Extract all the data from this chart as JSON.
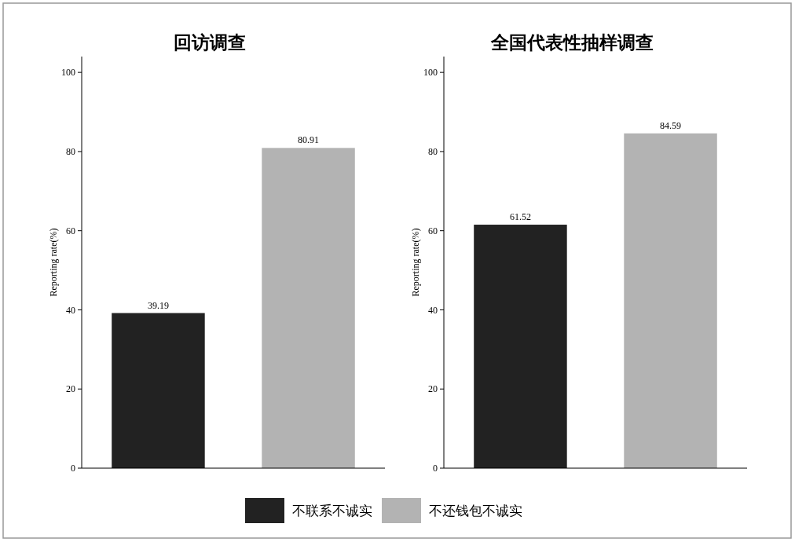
{
  "chart_data": [
    {
      "type": "bar",
      "title": "回访调查",
      "ylabel": "Reporting rate(%)",
      "categories": [
        null,
        null
      ],
      "series": [
        {
          "name": "不联系不诚实",
          "color": "#222222",
          "values": [
            39.19,
            null
          ]
        },
        {
          "name": "不还钱包不诚实",
          "color": "#b3b3b3",
          "values": [
            null,
            80.91
          ]
        }
      ],
      "ylim": [
        0,
        104
      ],
      "yticks": [
        0,
        20,
        40,
        60,
        80,
        100
      ],
      "data_labels": true,
      "legend": "bottom"
    },
    {
      "type": "bar",
      "title": "全国代表性抽样调查",
      "ylabel": "Reporting rate(%)",
      "categories": [
        null,
        null
      ],
      "series": [
        {
          "color": "#222222",
          "values": [
            61.52,
            null
          ]
        },
        {
          "color": "#b3b3b3",
          "values": [
            null,
            84.59
          ]
        }
      ],
      "ylim": [
        0,
        104
      ],
      "yticks": [
        0,
        20,
        40,
        60,
        80,
        100
      ],
      "data_labels": true
    }
  ]
}
